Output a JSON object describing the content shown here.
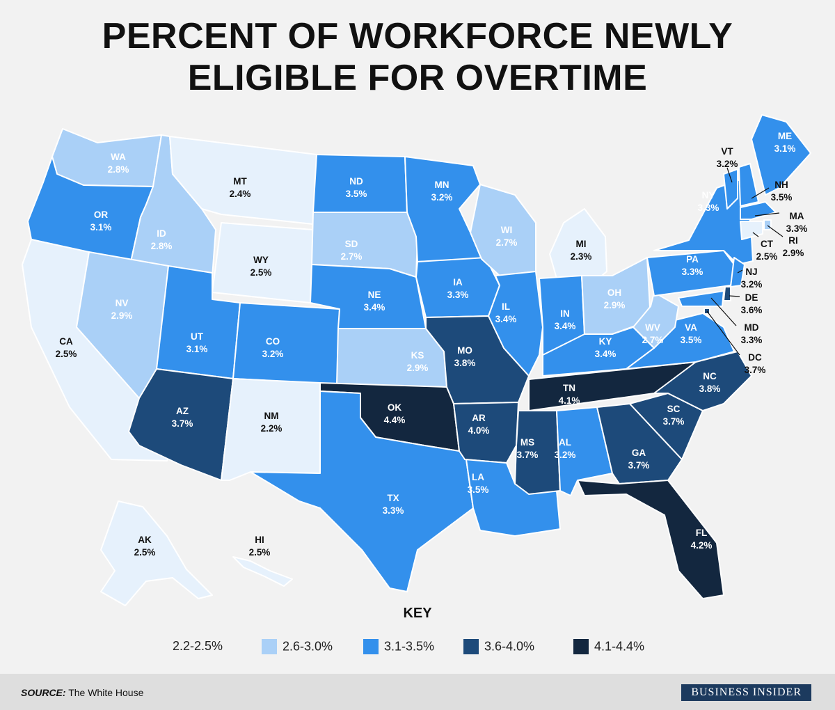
{
  "title_line1": "PERCENT OF WORKFORCE NEWLY",
  "title_line2": "ELIGIBLE FOR OVERTIME",
  "legend": {
    "title": "KEY",
    "items": [
      {
        "label": "2.2-2.5%",
        "color": "#e6f1fc"
      },
      {
        "label": "2.6-3.0%",
        "color": "#aad0f7"
      },
      {
        "label": "3.1-3.5%",
        "color": "#3390ec"
      },
      {
        "label": "3.6-4.0%",
        "color": "#1d4a7a"
      },
      {
        "label": "4.1-4.4%",
        "color": "#13273f"
      }
    ]
  },
  "states": [
    {
      "code": "WA",
      "value": "2.8%",
      "cls": 1
    },
    {
      "code": "OR",
      "value": "3.1%",
      "cls": 2
    },
    {
      "code": "CA",
      "value": "2.5%",
      "cls": 0
    },
    {
      "code": "ID",
      "value": "2.8%",
      "cls": 1
    },
    {
      "code": "NV",
      "value": "2.9%",
      "cls": 1
    },
    {
      "code": "MT",
      "value": "2.4%",
      "cls": 0
    },
    {
      "code": "WY",
      "value": "2.5%",
      "cls": 0
    },
    {
      "code": "UT",
      "value": "3.1%",
      "cls": 2
    },
    {
      "code": "AZ",
      "value": "3.7%",
      "cls": 3
    },
    {
      "code": "CO",
      "value": "3.2%",
      "cls": 2
    },
    {
      "code": "NM",
      "value": "2.2%",
      "cls": 0
    },
    {
      "code": "ND",
      "value": "3.5%",
      "cls": 2
    },
    {
      "code": "SD",
      "value": "2.7%",
      "cls": 1
    },
    {
      "code": "NE",
      "value": "3.4%",
      "cls": 2
    },
    {
      "code": "KS",
      "value": "2.9%",
      "cls": 1
    },
    {
      "code": "OK",
      "value": "4.4%",
      "cls": 4
    },
    {
      "code": "TX",
      "value": "3.3%",
      "cls": 2
    },
    {
      "code": "MN",
      "value": "3.2%",
      "cls": 2
    },
    {
      "code": "IA",
      "value": "3.3%",
      "cls": 2
    },
    {
      "code": "MO",
      "value": "3.8%",
      "cls": 3
    },
    {
      "code": "AR",
      "value": "4.0%",
      "cls": 3
    },
    {
      "code": "LA",
      "value": "3.5%",
      "cls": 2
    },
    {
      "code": "WI",
      "value": "2.7%",
      "cls": 1
    },
    {
      "code": "IL",
      "value": "3.4%",
      "cls": 2
    },
    {
      "code": "MI",
      "value": "2.3%",
      "cls": 0
    },
    {
      "code": "IN",
      "value": "3.4%",
      "cls": 2
    },
    {
      "code": "OH",
      "value": "2.9%",
      "cls": 1
    },
    {
      "code": "KY",
      "value": "3.4%",
      "cls": 2
    },
    {
      "code": "TN",
      "value": "4.1%",
      "cls": 4
    },
    {
      "code": "MS",
      "value": "3.7%",
      "cls": 3
    },
    {
      "code": "AL",
      "value": "3.2%",
      "cls": 2
    },
    {
      "code": "GA",
      "value": "3.7%",
      "cls": 3
    },
    {
      "code": "FL",
      "value": "4.2%",
      "cls": 4
    },
    {
      "code": "SC",
      "value": "3.7%",
      "cls": 3
    },
    {
      "code": "NC",
      "value": "3.8%",
      "cls": 3
    },
    {
      "code": "VA",
      "value": "3.5%",
      "cls": 2
    },
    {
      "code": "WV",
      "value": "2.7%",
      "cls": 1
    },
    {
      "code": "PA",
      "value": "3.3%",
      "cls": 2
    },
    {
      "code": "NY",
      "value": "3.3%",
      "cls": 2
    },
    {
      "code": "VT",
      "value": "3.2%",
      "cls": 2
    },
    {
      "code": "NH",
      "value": "3.5%",
      "cls": 2
    },
    {
      "code": "ME",
      "value": "3.1%",
      "cls": 2
    },
    {
      "code": "MA",
      "value": "3.3%",
      "cls": 2
    },
    {
      "code": "RI",
      "value": "2.9%",
      "cls": 1
    },
    {
      "code": "CT",
      "value": "2.5%",
      "cls": 0
    },
    {
      "code": "NJ",
      "value": "3.2%",
      "cls": 2
    },
    {
      "code": "DE",
      "value": "3.6%",
      "cls": 3
    },
    {
      "code": "MD",
      "value": "3.3%",
      "cls": 2
    },
    {
      "code": "DC",
      "value": "3.7%",
      "cls": 3
    },
    {
      "code": "AK",
      "value": "2.5%",
      "cls": 0
    },
    {
      "code": "HI",
      "value": "2.5%",
      "cls": 0
    }
  ],
  "source_label": "SOURCE:",
  "source_text": "The White House",
  "brand": "BUSINESS INSIDER"
}
